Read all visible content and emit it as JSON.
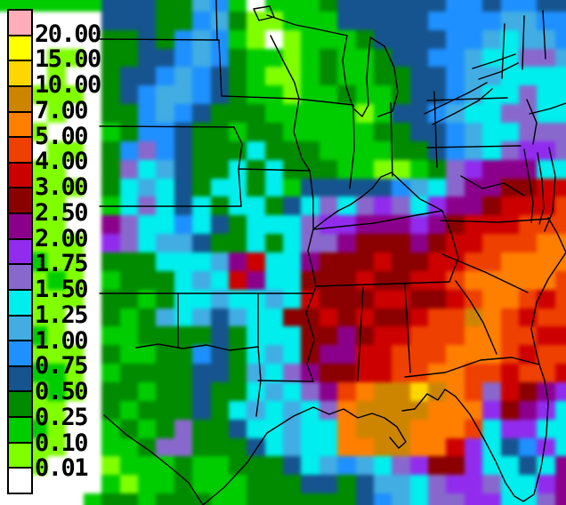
{
  "legend": {
    "values": [
      "20.00",
      "15.00",
      "10.00",
      "7.00",
      "5.00",
      "4.00",
      "3.00",
      "2.50",
      "2.00",
      "1.75",
      "1.50",
      "1.25",
      "1.00",
      "0.75",
      "0.50",
      "0.25",
      "0.10",
      "0.01"
    ],
    "swatches": [
      "#FFAEB9",
      "#FFFF00",
      "#FFD700",
      "#CD8500",
      "#FF7F00",
      "#EE4000",
      "#CD0000",
      "#8B0000",
      "#8B008B",
      "#912CEE",
      "#8968CD",
      "#00EEEE",
      "#41ADE3",
      "#1E90FF",
      "#15548F",
      "#008B00",
      "#00CD00",
      "#7FFF00",
      "#FFFFFF"
    ]
  },
  "map": {
    "border_color": "#000000",
    "palette": {
      ".": "#FFFFFF",
      "a": "#7FFF00",
      "b": "#00CD00",
      "c": "#008B00",
      "d": "#15548F",
      "e": "#1E90FF",
      "f": "#41ADE3",
      "g": "#00EEEE",
      "h": "#8968CD",
      "i": "#912CEE",
      "j": "#8B008B",
      "k": "#8B0000",
      "l": "#CD0000",
      "m": "#EE4000",
      "n": "#FF7F00",
      "o": "#CD8500",
      "p": "#FFD700",
      "q": "#FFFF00",
      "r": "#FFAEB9"
    },
    "grid_cols": 32,
    "grid_rows": [
      "bbbbbbdddccfeb.bbbcddddddeedeedd",
      "......dddccefcaabbbdddddeeeeffee",
      "......ccdcefeba.abbbcddddeefgffe",
      "...aa.ccddefecbbabcbbcddeefgghhf",
      "...a..cddefedcbaabcbbccddeffgggg",
      "..aaa.cdeffedcbbabbcbbcddefgghgg",
      "...a..ccefedcccbbbbbabddefgghhgg",
      "..a...bceedccbccbbbbbccddefgghhh",
      "...aa.cehedcccgcccbbbbccdefghiih",
      "..aa..chgfdccgcgcccbbaabchijjjgg",
      "..aaa.cgfgdcggcgbdddddefghjjkkll",
      "..aa..bghgdgcggcdghghihgijjklllm",
      ".aaa..jhggegdcggghiijjjijklllmmm",
      ".aaaa.ihgffdccgcghhjkkkjkllmmmnn",
      ".abaa.cccgggfjlggjkkklkkllmmnnnn",
      ".aaba.bcccgfgljggkkklkkllmnnnnnm",
      ".aaaa.ccbcggfggfglkkkllkklmnnmlm",
      ".baa..cbcfgfdfggkklklkklmmonmlmm",
      ".aba..bbccccdcgggkkjkllmmmnnmmll",
      ".baaa.cbbccedcgfgkjjllmmmnnnmlmm",
      ".abba.bccccddcfghjkkllmmnnmmlmml",
      ".aaba.ccbccdccgfghjmnooponmhlkji",
      ".baa..cbcccdcgfgfghnoooonnnikjig",
      ".aba..bcbchccdggfggnooonnnmgiigg",
      "..aa..bbchhcccdgfggnnoonnligdeig",
      "..a...abbbcbbcccdgfefghikkiggdgj",
      "......babbcbbbcccddcdffghiihggij",
      ".....bccbcccbbccccccdefghhiigghj"
    ]
  }
}
